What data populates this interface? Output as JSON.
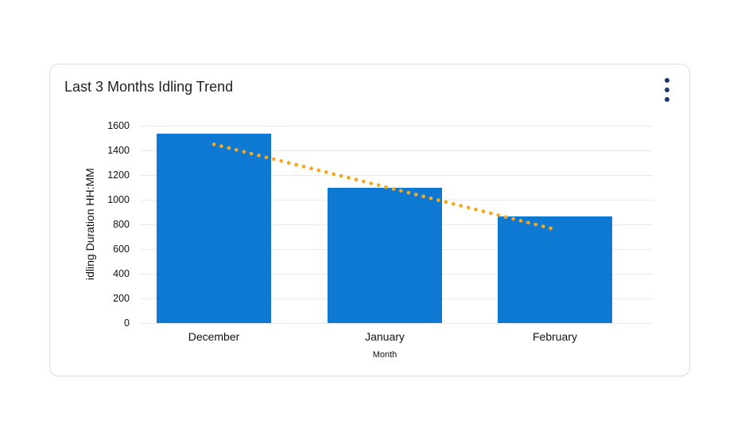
{
  "card": {
    "title": "Last 3 Months Idling Trend",
    "menu_icon": "kebab-vertical-icon"
  },
  "colors": {
    "bar": "#0d79d2",
    "trend_line": "#f5a71f",
    "menu_dots": "#1b3a6b",
    "gridline": "#e9e9e9",
    "card_border": "#d9dde4",
    "text": "#111111"
  },
  "chart_data": {
    "type": "bar",
    "title": "Last 3 Months Idling Trend",
    "categories": [
      "December",
      "January",
      "February"
    ],
    "series": [
      {
        "name": "Idling Duration",
        "type": "bar",
        "color": "#0d79d2",
        "values": [
          1535,
          1100,
          865
        ]
      },
      {
        "name": "Trend",
        "type": "dotted-line",
        "color": "#f5a71f",
        "values": [
          1450,
          1105,
          760
        ]
      }
    ],
    "xlabel": "Month",
    "ylabel": "idling Duration HH:MM",
    "ylim": [
      0,
      1600
    ],
    "yticks": [
      0,
      200,
      400,
      600,
      800,
      1000,
      1200,
      1400,
      1600
    ],
    "grid": true,
    "legend": "none"
  }
}
